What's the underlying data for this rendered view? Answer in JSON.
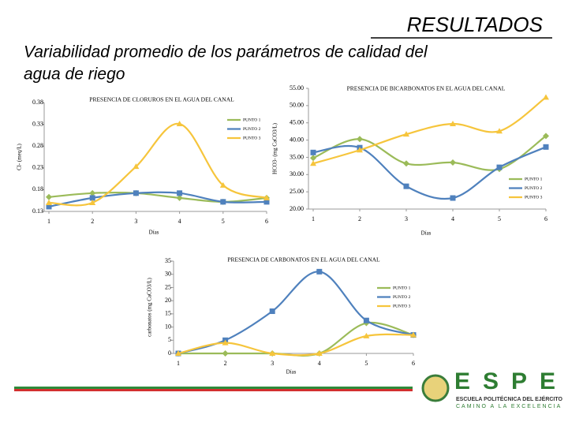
{
  "header": {
    "title": "RESULTADOS",
    "subtitle_lines": [
      "Variabilidad promedio de los parámetros de calidad del",
      "agua de riego"
    ]
  },
  "logo": {
    "name": "ESPE",
    "line1": "ESCUELA POLITÉCNICA DEL EJÉRCITO",
    "line2": "CAMINO A LA EXCELENCIA"
  },
  "chart_data": [
    {
      "type": "line",
      "title": "PRESENCIA DE CLORUROS EN EL AGUA DEL CANAL",
      "y_label": "Cl- (meq/L)",
      "x_label": "Días",
      "x": [
        1,
        2,
        3,
        4,
        5,
        6
      ],
      "xlim": [
        1,
        6
      ],
      "xticks": [
        1,
        2,
        3,
        4,
        5,
        6
      ],
      "ylim": [
        0.13,
        0.38
      ],
      "yticks": [
        0.13,
        0.18,
        0.23,
        0.28,
        0.33,
        0.38
      ],
      "series": [
        {
          "name": "PUNTO 1",
          "color": "#9bbb59",
          "values": [
            0.163,
            0.172,
            0.172,
            0.161,
            0.152,
            0.161
          ]
        },
        {
          "name": "PUNTO 2",
          "color": "#4f81bd",
          "values": [
            0.141,
            0.161,
            0.172,
            0.172,
            0.152,
            0.152
          ]
        },
        {
          "name": "PUNTO 3",
          "color": "#f6c53c",
          "values": [
            0.15,
            0.15,
            0.233,
            0.331,
            0.19,
            0.161
          ]
        }
      ]
    },
    {
      "type": "line",
      "title": "PRESENCIA DE BICARBONATOS EN EL AGUA DEL CANAL",
      "y_label": "HCO3- (mg CaCO3/L)",
      "x_label": "Días",
      "x": [
        1,
        2,
        3,
        4,
        5,
        6
      ],
      "xlim": [
        1,
        6
      ],
      "xticks": [
        1,
        2,
        3,
        4,
        5,
        6
      ],
      "ylim": [
        20,
        55
      ],
      "yticks": [
        {
          "value": 20,
          "label": "20.00"
        },
        {
          "value": 25,
          "label": "25.00"
        },
        {
          "value": 30,
          "label": "30.00"
        },
        {
          "value": 35,
          "label": "35.00"
        },
        {
          "value": 40,
          "label": "40.00"
        },
        {
          "value": 45,
          "label": "45.00"
        },
        {
          "value": 50,
          "label": "50.00"
        },
        {
          "value": 55,
          "label": "55.00"
        }
      ],
      "series": [
        {
          "name": "PUNTO 1",
          "color": "#9bbb59",
          "values": [
            34.8,
            40.3,
            33.2,
            33.5,
            31.6,
            41.2
          ]
        },
        {
          "name": "PUNTO 2",
          "color": "#4f81bd",
          "values": [
            36.4,
            37.8,
            26.6,
            23.2,
            32.1,
            38
          ]
        },
        {
          "name": "PUNTO 3",
          "color": "#f6c53c",
          "values": [
            33.2,
            37.1,
            41.7,
            44.7,
            42.6,
            52.4
          ]
        }
      ]
    },
    {
      "type": "line",
      "title": "PRESENCIA DE CARBONATOS EN EL AGUA DEL CANAL",
      "y_label": "carbonatos (mg CaCO3/L)",
      "x_label": "Días",
      "x": [
        1,
        2,
        3,
        4,
        5,
        6
      ],
      "xlim": [
        1,
        6
      ],
      "xticks": [
        1,
        2,
        3,
        4,
        5,
        6
      ],
      "ylim": [
        0,
        35
      ],
      "yticks": [
        0,
        5,
        10,
        15,
        20,
        25,
        30,
        35
      ],
      "series": [
        {
          "name": "PUNTO 1",
          "color": "#9bbb59",
          "values": [
            0,
            0,
            0,
            0,
            11.5,
            7
          ]
        },
        {
          "name": "PUNTO 2",
          "color": "#4f81bd",
          "values": [
            0,
            5,
            16,
            31,
            12.5,
            7
          ]
        },
        {
          "name": "PUNTO 3",
          "color": "#f6c53c",
          "values": [
            0,
            4,
            0,
            0,
            6.6,
            7
          ]
        }
      ]
    }
  ]
}
